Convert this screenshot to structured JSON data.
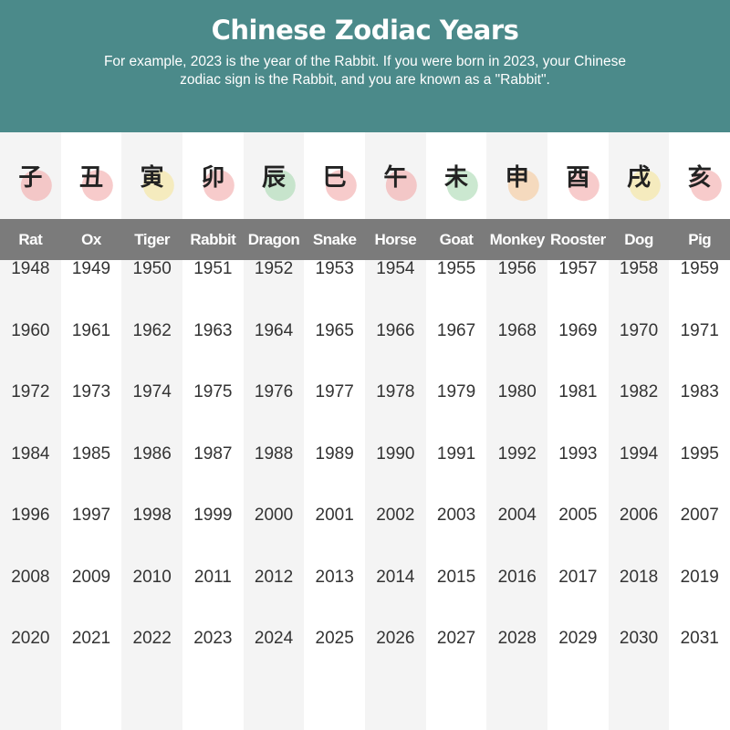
{
  "header": {
    "title": "Chinese Zodiac Years",
    "subtitle": "For example, 2023 is the year of the Rabbit. If you were born in 2023, your Chinese zodiac sign is the Rabbit, and you are known as a \"Rabbit\"."
  },
  "colors": {
    "header": "#4b8a8a",
    "bar": "#7b7b7b",
    "pink": "#f2a8a8",
    "yellow": "#f5e59a",
    "green": "#a8d8b0"
  },
  "animals": [
    {
      "name": "Rat",
      "glyph": "子",
      "icon": "rat-icon",
      "accent": "#f2a8a8",
      "years": [
        "1948",
        "1960",
        "1972",
        "1984",
        "1996",
        "2008",
        "2020"
      ]
    },
    {
      "name": "Ox",
      "glyph": "丑",
      "icon": "ox-icon",
      "accent": "#f2a8a8",
      "years": [
        "1949",
        "1961",
        "1973",
        "1985",
        "1997",
        "2009",
        "2021"
      ]
    },
    {
      "name": "Tiger",
      "glyph": "寅",
      "icon": "tiger-icon",
      "accent": "#f5e59a",
      "years": [
        "1950",
        "1962",
        "1974",
        "1986",
        "1998",
        "2010",
        "2022"
      ]
    },
    {
      "name": "Rabbit",
      "glyph": "卯",
      "icon": "rabbit-icon",
      "accent": "#f2a8a8",
      "years": [
        "1951",
        "1963",
        "1975",
        "1987",
        "1999",
        "2011",
        "2023"
      ]
    },
    {
      "name": "Dragon",
      "glyph": "辰",
      "icon": "dragon-icon",
      "accent": "#a8d8b0",
      "years": [
        "1952",
        "1964",
        "1976",
        "1988",
        "2000",
        "2012",
        "2024"
      ]
    },
    {
      "name": "Snake",
      "glyph": "巳",
      "icon": "snake-icon",
      "accent": "#f2a8a8",
      "years": [
        "1953",
        "1965",
        "1977",
        "1989",
        "2001",
        "2013",
        "2025"
      ]
    },
    {
      "name": "Horse",
      "glyph": "午",
      "icon": "horse-icon",
      "accent": "#f2a8a8",
      "years": [
        "1954",
        "1966",
        "1978",
        "1990",
        "2002",
        "2014",
        "2026"
      ]
    },
    {
      "name": "Goat",
      "glyph": "未",
      "icon": "goat-icon",
      "accent": "#a8d8b0",
      "years": [
        "1955",
        "1967",
        "1979",
        "1991",
        "2003",
        "2015",
        "2027"
      ]
    },
    {
      "name": "Monkey",
      "glyph": "申",
      "icon": "monkey-icon",
      "accent": "#f5c89a",
      "years": [
        "1956",
        "1968",
        "1980",
        "1992",
        "2004",
        "2016",
        "2028"
      ]
    },
    {
      "name": "Rooster",
      "glyph": "酉",
      "icon": "rooster-icon",
      "accent": "#f2a8a8",
      "years": [
        "1957",
        "1969",
        "1981",
        "1993",
        "2005",
        "2017",
        "2029"
      ]
    },
    {
      "name": "Dog",
      "glyph": "戌",
      "icon": "dog-icon",
      "accent": "#f5e59a",
      "years": [
        "1958",
        "1970",
        "1982",
        "1994",
        "2006",
        "2018",
        "2030"
      ]
    },
    {
      "name": "Pig",
      "glyph": "亥",
      "icon": "pig-icon",
      "accent": "#f2a8a8",
      "years": [
        "1959",
        "1971",
        "1983",
        "1995",
        "2007",
        "2019",
        "2031"
      ]
    }
  ]
}
